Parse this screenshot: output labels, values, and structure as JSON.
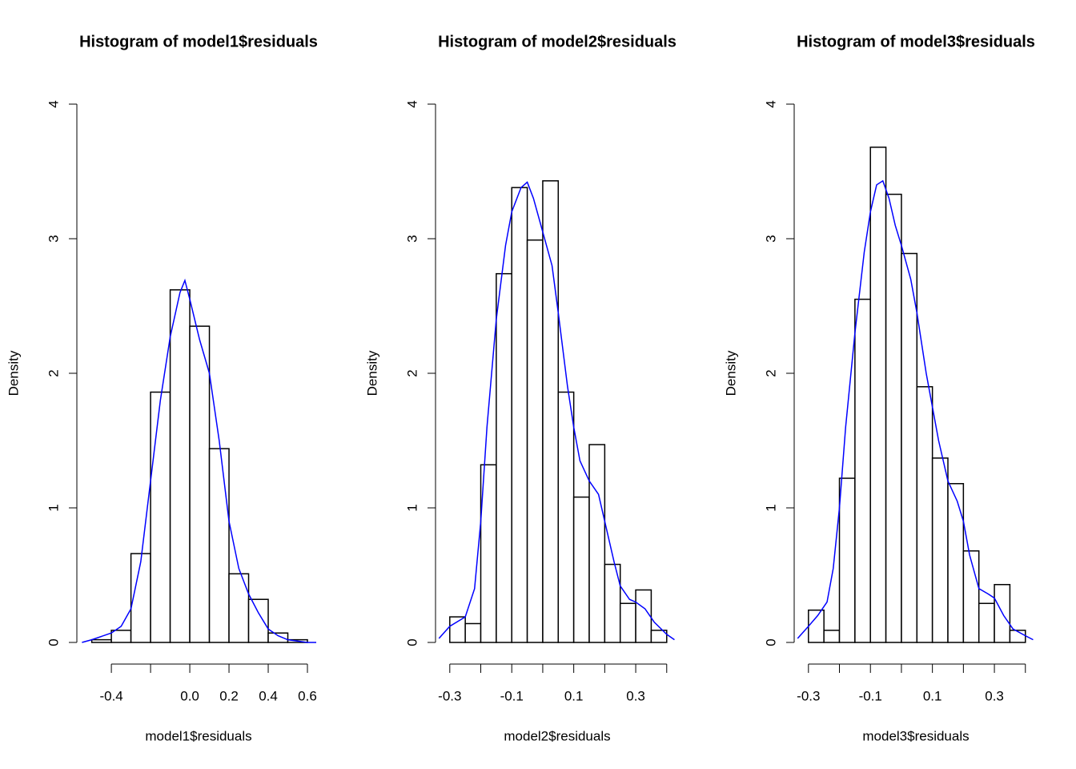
{
  "chart_data": [
    {
      "type": "histogram",
      "title": "Histogram of model1$residuals",
      "xlabel": "model1$residuals",
      "ylabel": "Density",
      "bins": [
        -0.5,
        -0.4,
        -0.3,
        -0.2,
        -0.1,
        0,
        0.1,
        0.2,
        0.3,
        0.4,
        0.5,
        0.6
      ],
      "values": [
        0.02,
        0.09,
        0.66,
        1.86,
        2.62,
        2.35,
        1.44,
        0.51,
        0.32,
        0.07,
        0.02
      ],
      "color": "#ffffff",
      "edgecolor": "#000000",
      "xlim": [
        -0.576,
        0.649
      ],
      "ylim": [
        0,
        4
      ],
      "xticks": [
        -0.4,
        {
          "value": -0.2,
          "label": null
        },
        {
          "value": 0,
          "label": "0.0"
        },
        0.2,
        0.4,
        0.6
      ],
      "yticks": [
        0,
        1,
        2,
        3,
        4
      ],
      "series": [
        {
          "color": "#0000ff",
          "x": [
            -0.55,
            -0.5,
            -0.4,
            -0.35,
            -0.3,
            -0.25,
            -0.2,
            -0.15,
            -0.1,
            -0.05,
            -0.025,
            0,
            0.05,
            0.1,
            0.15,
            0.2,
            0.25,
            0.3,
            0.35,
            0.4,
            0.45,
            0.5,
            0.6,
            0.645
          ],
          "values": [
            0,
            0.02,
            0.07,
            0.12,
            0.25,
            0.6,
            1.2,
            1.8,
            2.27,
            2.6,
            2.69,
            2.55,
            2.25,
            2.0,
            1.5,
            0.9,
            0.55,
            0.36,
            0.22,
            0.1,
            0.05,
            0.02,
            0,
            0
          ]
        }
      ]
    },
    {
      "type": "histogram",
      "title": "Histogram of model2$residuals",
      "xlabel": "model2$residuals",
      "ylabel": "Density",
      "bins": [
        -0.3,
        -0.25,
        -0.2,
        -0.15,
        -0.1,
        -0.05,
        0,
        0.05,
        0.1,
        0.15,
        0.2,
        0.25,
        0.3,
        0.35,
        0.4
      ],
      "values": [
        0.19,
        0.14,
        1.32,
        2.74,
        3.38,
        2.99,
        3.43,
        1.86,
        1.08,
        1.47,
        0.58,
        0.29,
        0.39,
        0.09
      ],
      "color": "#ffffff",
      "edgecolor": "#000000",
      "xlim": [
        -0.346,
        0.429
      ],
      "ylim": [
        0,
        4
      ],
      "xticks": [
        -0.3,
        {
          "value": -0.2,
          "label": null
        },
        -0.1,
        {
          "value": 0,
          "label": null
        },
        0.1,
        {
          "value": 0.2,
          "label": null
        },
        0.3,
        {
          "value": 0.4,
          "label": null
        }
      ],
      "yticks": [
        0,
        1,
        2,
        3,
        4
      ],
      "series": [
        {
          "color": "#0000ff",
          "x": [
            -0.335,
            -0.3,
            -0.25,
            -0.22,
            -0.2,
            -0.18,
            -0.15,
            -0.12,
            -0.1,
            -0.07,
            -0.05,
            -0.03,
            0,
            0.03,
            0.05,
            0.08,
            0.1,
            0.12,
            0.15,
            0.18,
            0.2,
            0.23,
            0.25,
            0.28,
            0.3,
            0.33,
            0.36,
            0.4,
            0.425
          ],
          "values": [
            0.03,
            0.12,
            0.19,
            0.4,
            0.9,
            1.6,
            2.4,
            2.95,
            3.2,
            3.38,
            3.42,
            3.3,
            3.05,
            2.8,
            2.45,
            1.9,
            1.6,
            1.35,
            1.2,
            1.1,
            0.9,
            0.6,
            0.42,
            0.32,
            0.3,
            0.25,
            0.15,
            0.06,
            0.02
          ]
        }
      ]
    },
    {
      "type": "histogram",
      "title": "Histogram of model3$residuals",
      "xlabel": "model3$residuals",
      "ylabel": "Density",
      "bins": [
        -0.3,
        -0.25,
        -0.2,
        -0.15,
        -0.1,
        -0.05,
        0,
        0.05,
        0.1,
        0.15,
        0.2,
        0.25,
        0.3,
        0.35,
        0.4
      ],
      "values": [
        0.24,
        0.09,
        1.22,
        2.55,
        3.68,
        3.33,
        2.89,
        1.9,
        1.37,
        1.18,
        0.68,
        0.29,
        0.43,
        0.09
      ],
      "color": "#ffffff",
      "edgecolor": "#000000",
      "xlim": [
        -0.346,
        0.429
      ],
      "ylim": [
        0,
        4
      ],
      "xticks": [
        -0.3,
        {
          "value": -0.2,
          "label": null
        },
        -0.1,
        {
          "value": 0,
          "label": null
        },
        0.1,
        {
          "value": 0.2,
          "label": null
        },
        0.3,
        {
          "value": 0.4,
          "label": null
        }
      ],
      "yticks": [
        0,
        1,
        2,
        3,
        4
      ],
      "series": [
        {
          "color": "#0000ff",
          "x": [
            -0.335,
            -0.3,
            -0.27,
            -0.24,
            -0.22,
            -0.2,
            -0.18,
            -0.15,
            -0.12,
            -0.1,
            -0.08,
            -0.06,
            -0.04,
            -0.02,
            0,
            0.03,
            0.05,
            0.08,
            0.1,
            0.12,
            0.15,
            0.18,
            0.2,
            0.22,
            0.25,
            0.28,
            0.3,
            0.33,
            0.36,
            0.4,
            0.425
          ],
          "values": [
            0.03,
            0.12,
            0.2,
            0.3,
            0.55,
            1.0,
            1.6,
            2.3,
            2.9,
            3.2,
            3.4,
            3.43,
            3.3,
            3.1,
            2.95,
            2.7,
            2.45,
            2.0,
            1.75,
            1.5,
            1.2,
            1.05,
            0.9,
            0.65,
            0.4,
            0.36,
            0.33,
            0.2,
            0.1,
            0.05,
            0.02
          ]
        }
      ]
    }
  ]
}
